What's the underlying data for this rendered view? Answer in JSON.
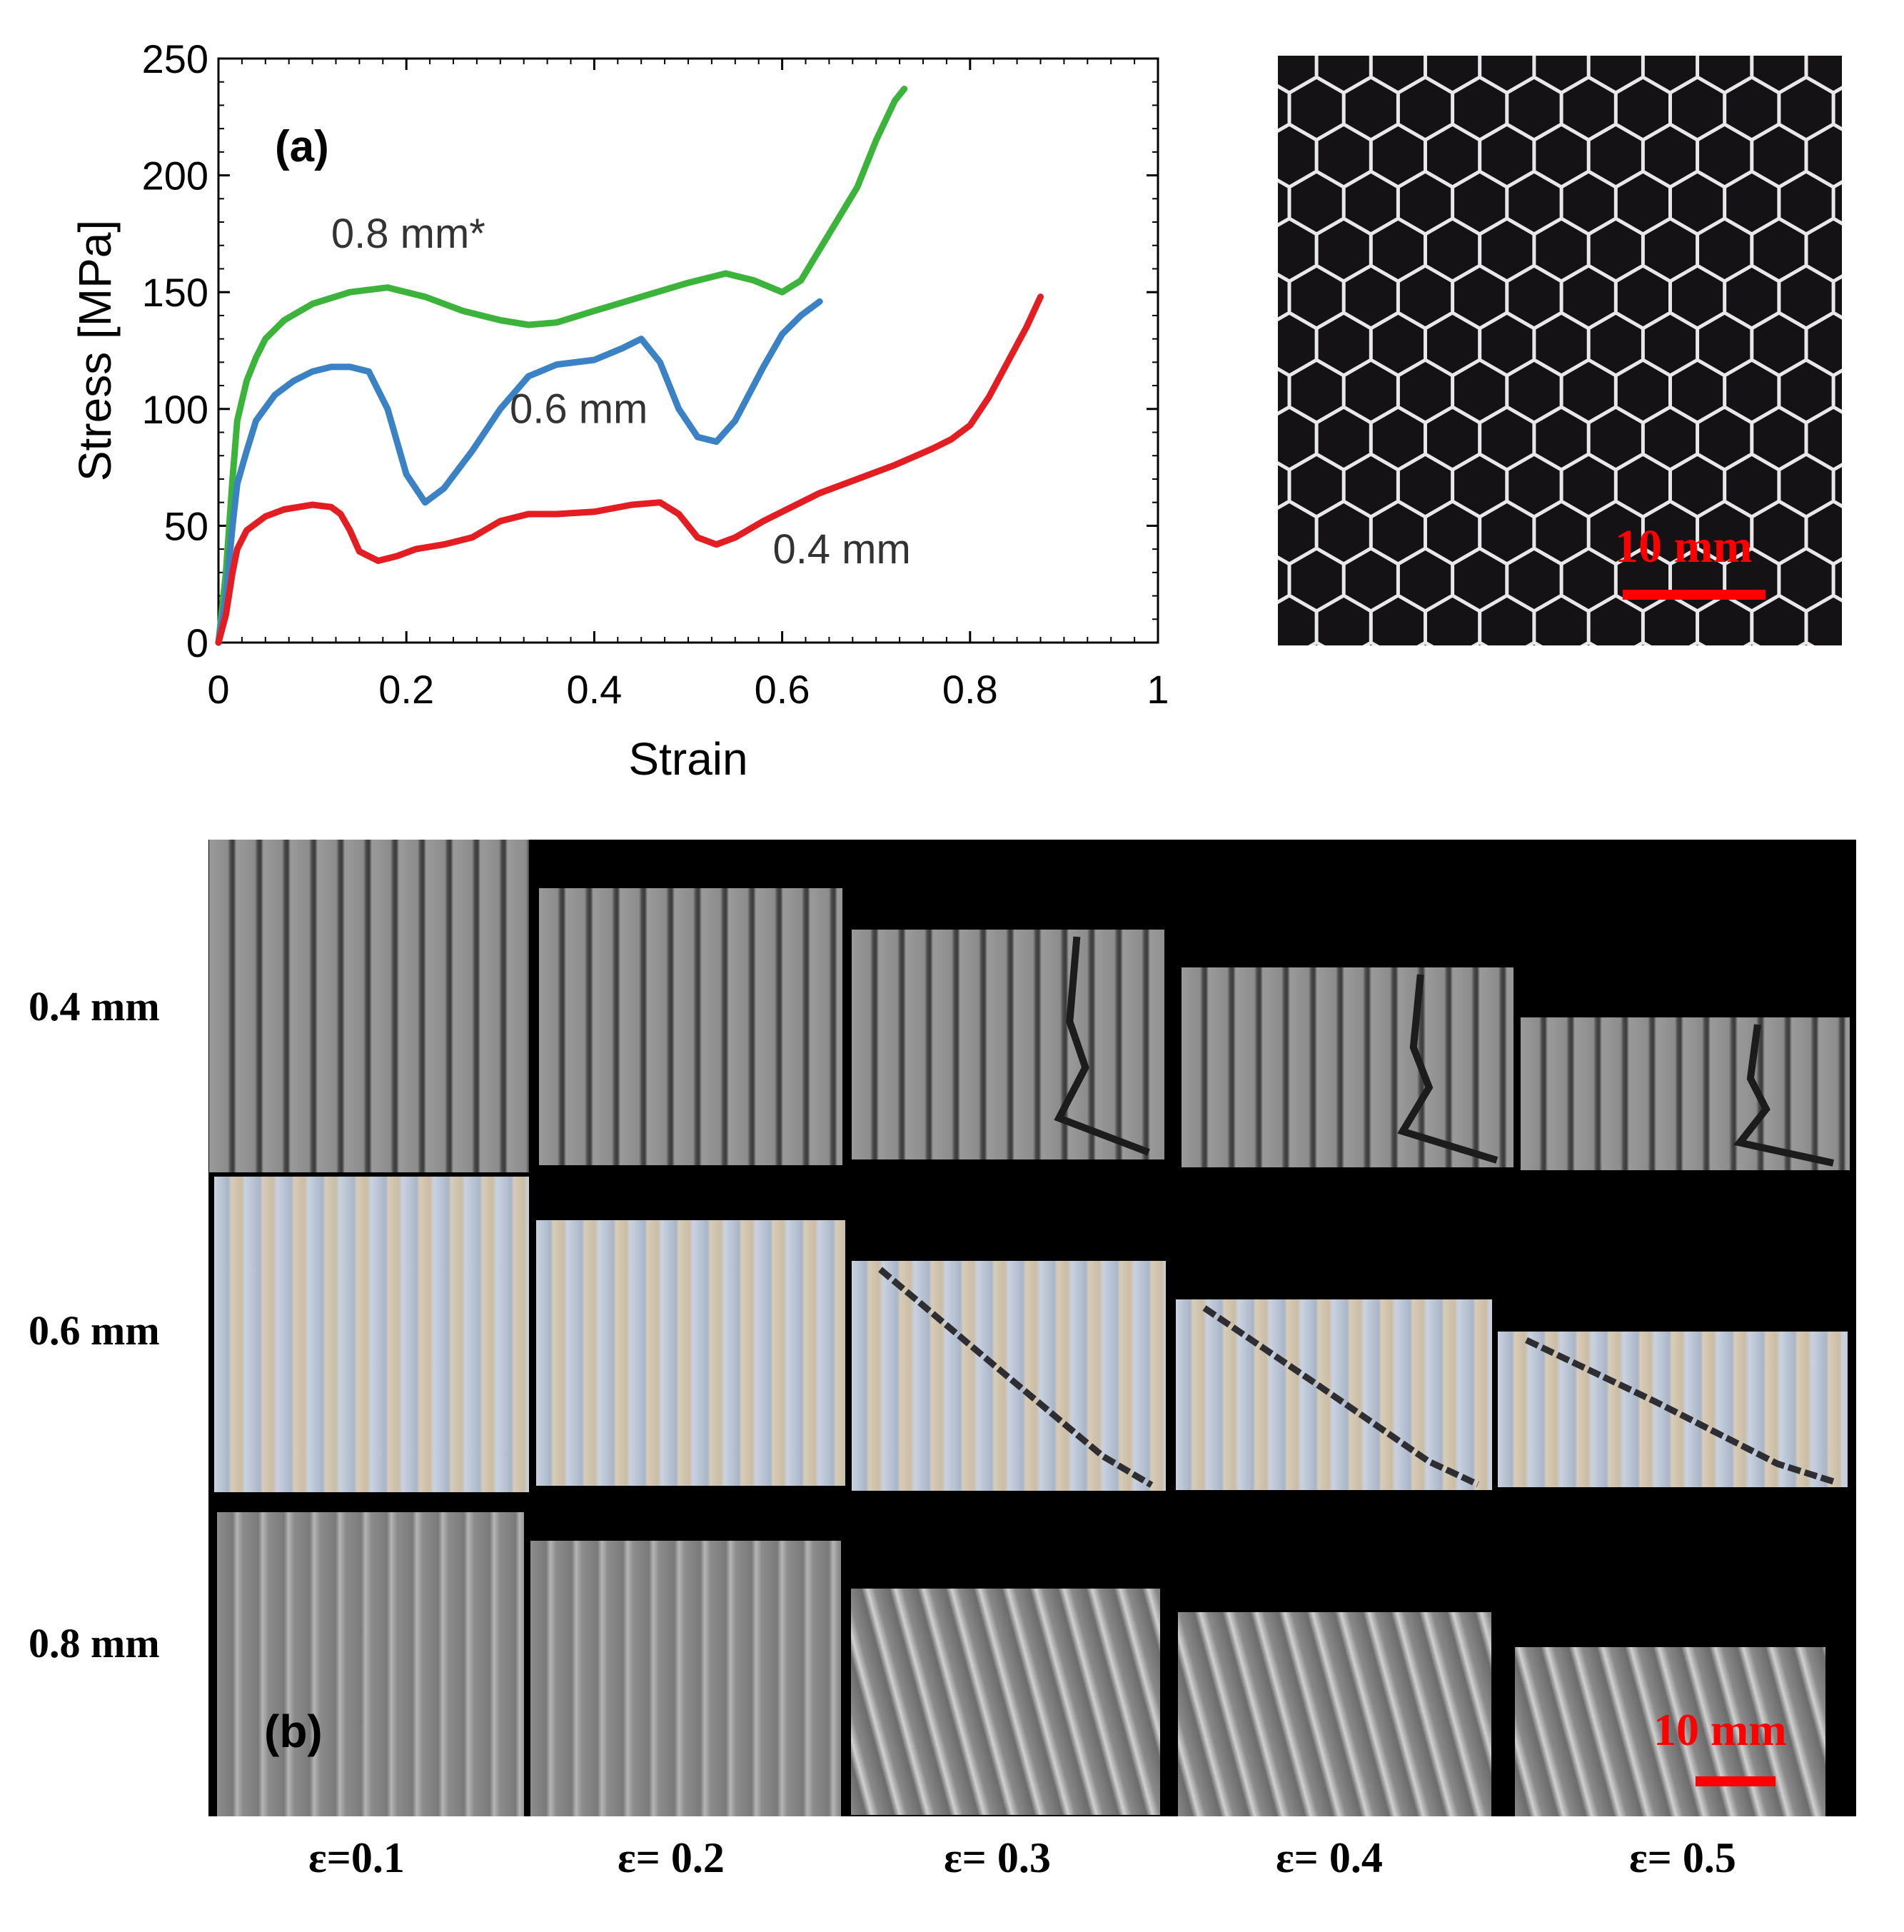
{
  "chart_data": {
    "type": "line",
    "panel_label": "(a)",
    "xlabel": "Strain",
    "ylabel": "Stress [MPa]",
    "xlim": [
      0,
      1
    ],
    "ylim": [
      0,
      250
    ],
    "x_ticks": [
      0,
      0.2,
      0.4,
      0.6,
      0.8,
      1
    ],
    "x_tick_labels": [
      "0",
      "0.2",
      "0.4",
      "0.6",
      "0.8",
      "1"
    ],
    "y_ticks": [
      0,
      50,
      100,
      150,
      200,
      250
    ],
    "y_tick_labels": [
      "0",
      "50",
      "100",
      "150",
      "200",
      "250"
    ],
    "series": [
      {
        "name": "0.8 mm*",
        "color": "#3cb43c",
        "label_at": [
          0.12,
          169
        ],
        "points": [
          [
            0,
            0
          ],
          [
            0.008,
            30
          ],
          [
            0.015,
            70
          ],
          [
            0.02,
            95
          ],
          [
            0.03,
            112
          ],
          [
            0.04,
            122
          ],
          [
            0.05,
            130
          ],
          [
            0.07,
            138
          ],
          [
            0.1,
            145
          ],
          [
            0.14,
            150
          ],
          [
            0.18,
            152
          ],
          [
            0.22,
            148
          ],
          [
            0.26,
            142
          ],
          [
            0.3,
            138
          ],
          [
            0.33,
            136
          ],
          [
            0.36,
            137
          ],
          [
            0.4,
            142
          ],
          [
            0.45,
            148
          ],
          [
            0.5,
            154
          ],
          [
            0.54,
            158
          ],
          [
            0.57,
            155
          ],
          [
            0.6,
            150
          ],
          [
            0.62,
            155
          ],
          [
            0.65,
            175
          ],
          [
            0.68,
            195
          ],
          [
            0.7,
            215
          ],
          [
            0.72,
            232
          ],
          [
            0.73,
            237
          ]
        ]
      },
      {
        "name": "0.6 mm",
        "color": "#3a82c4",
        "label_at": [
          0.31,
          94
        ],
        "points": [
          [
            0,
            0
          ],
          [
            0.008,
            20
          ],
          [
            0.015,
            50
          ],
          [
            0.02,
            68
          ],
          [
            0.03,
            82
          ],
          [
            0.04,
            95
          ],
          [
            0.06,
            106
          ],
          [
            0.08,
            112
          ],
          [
            0.1,
            116
          ],
          [
            0.12,
            118
          ],
          [
            0.14,
            118
          ],
          [
            0.16,
            116
          ],
          [
            0.18,
            100
          ],
          [
            0.2,
            72
          ],
          [
            0.22,
            60
          ],
          [
            0.24,
            66
          ],
          [
            0.27,
            82
          ],
          [
            0.3,
            100
          ],
          [
            0.33,
            114
          ],
          [
            0.36,
            119
          ],
          [
            0.4,
            121
          ],
          [
            0.43,
            126
          ],
          [
            0.45,
            130
          ],
          [
            0.47,
            120
          ],
          [
            0.49,
            100
          ],
          [
            0.51,
            88
          ],
          [
            0.53,
            86
          ],
          [
            0.55,
            95
          ],
          [
            0.58,
            118
          ],
          [
            0.6,
            132
          ],
          [
            0.62,
            140
          ],
          [
            0.64,
            146
          ]
        ]
      },
      {
        "name": "0.4 mm",
        "color": "#e21e22",
        "label_at": [
          0.59,
          34
        ],
        "points": [
          [
            0,
            0
          ],
          [
            0.008,
            12
          ],
          [
            0.015,
            30
          ],
          [
            0.02,
            40
          ],
          [
            0.03,
            48
          ],
          [
            0.05,
            54
          ],
          [
            0.07,
            57
          ],
          [
            0.1,
            59
          ],
          [
            0.12,
            58
          ],
          [
            0.13,
            55
          ],
          [
            0.14,
            48
          ],
          [
            0.15,
            39
          ],
          [
            0.17,
            35
          ],
          [
            0.19,
            37
          ],
          [
            0.21,
            40
          ],
          [
            0.24,
            42
          ],
          [
            0.27,
            45
          ],
          [
            0.3,
            52
          ],
          [
            0.33,
            55
          ],
          [
            0.36,
            55
          ],
          [
            0.4,
            56
          ],
          [
            0.44,
            59
          ],
          [
            0.47,
            60
          ],
          [
            0.49,
            55
          ],
          [
            0.51,
            45
          ],
          [
            0.53,
            42
          ],
          [
            0.55,
            45
          ],
          [
            0.58,
            52
          ],
          [
            0.61,
            58
          ],
          [
            0.64,
            64
          ],
          [
            0.68,
            70
          ],
          [
            0.72,
            76
          ],
          [
            0.76,
            83
          ],
          [
            0.78,
            87
          ],
          [
            0.8,
            93
          ],
          [
            0.82,
            105
          ],
          [
            0.84,
            120
          ],
          [
            0.86,
            135
          ],
          [
            0.875,
            148
          ]
        ]
      }
    ]
  },
  "honeycomb": {
    "scale_label": "10 mm"
  },
  "panel_b": {
    "panel_label": "(b)",
    "scale_label": "10 mm",
    "row_labels": [
      "0.4 mm",
      "0.6 mm",
      "0.8 mm"
    ],
    "strain_labels": [
      "ε=0.1",
      "ε= 0.2",
      "ε= 0.3",
      "ε= 0.4",
      "ε= 0.5"
    ],
    "strain_values": [
      0.1,
      0.2,
      0.3,
      0.4,
      0.5
    ]
  }
}
